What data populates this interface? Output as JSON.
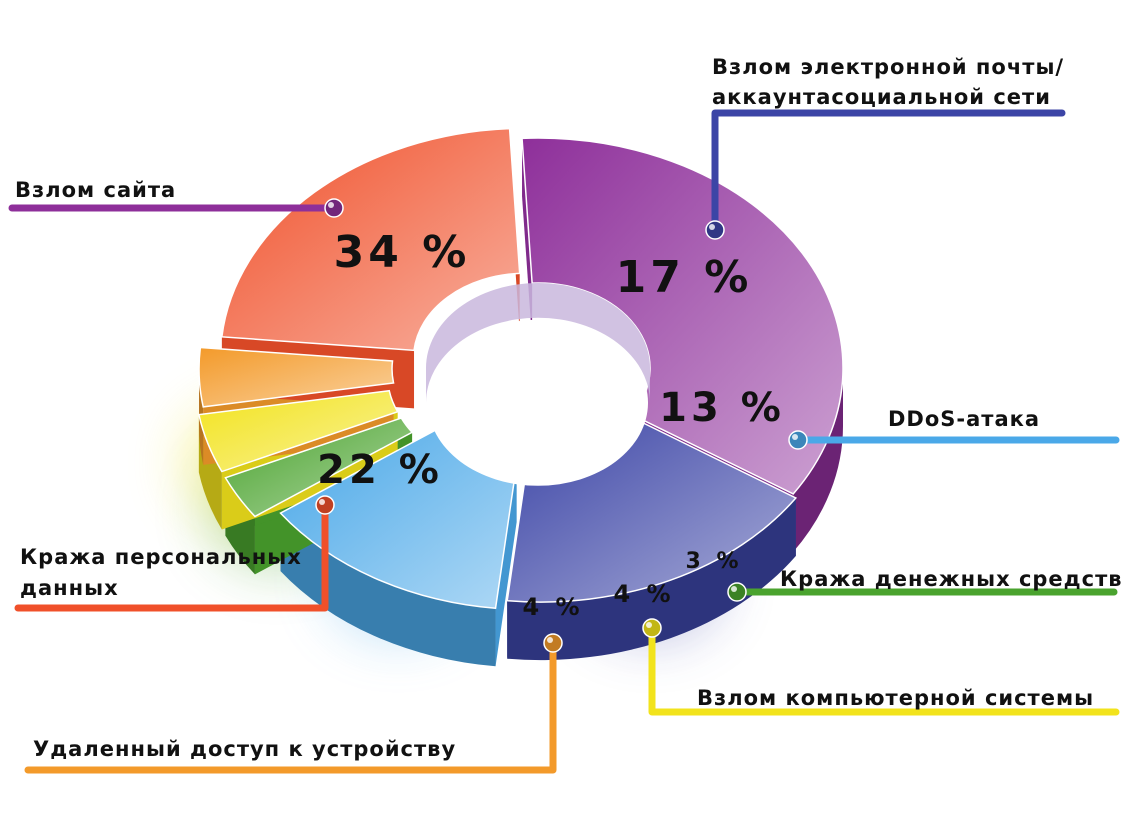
{
  "chart_data": {
    "type": "pie",
    "variant": "donut-3d",
    "unit": "%",
    "slices": [
      {
        "label": "Взлом сайта",
        "value": 34,
        "color": "#8e2f9a"
      },
      {
        "label": "Взлом электронной почты/ аккаунтасоциальной сети",
        "label_lines": [
          "Взлом электронной почты/",
          "аккаунтасоциальной сети"
        ],
        "value": 17,
        "color": "#3c45a6"
      },
      {
        "label": "DDoS-атака",
        "value": 13,
        "color": "#4aa8e8"
      },
      {
        "label": "Кража денежных средств",
        "value": 3,
        "color": "#4aa32e"
      },
      {
        "label": "Взлом компьютерной системы",
        "value": 4,
        "color": "#f2e31c"
      },
      {
        "label": "Удаленный доступ к устройству",
        "value": 4,
        "color": "#f39a2a"
      },
      {
        "label": "Кража персональных данных",
        "label_lines": [
          "Кража персональных",
          "данных"
        ],
        "value": 22,
        "color": "#f0502a"
      }
    ]
  }
}
